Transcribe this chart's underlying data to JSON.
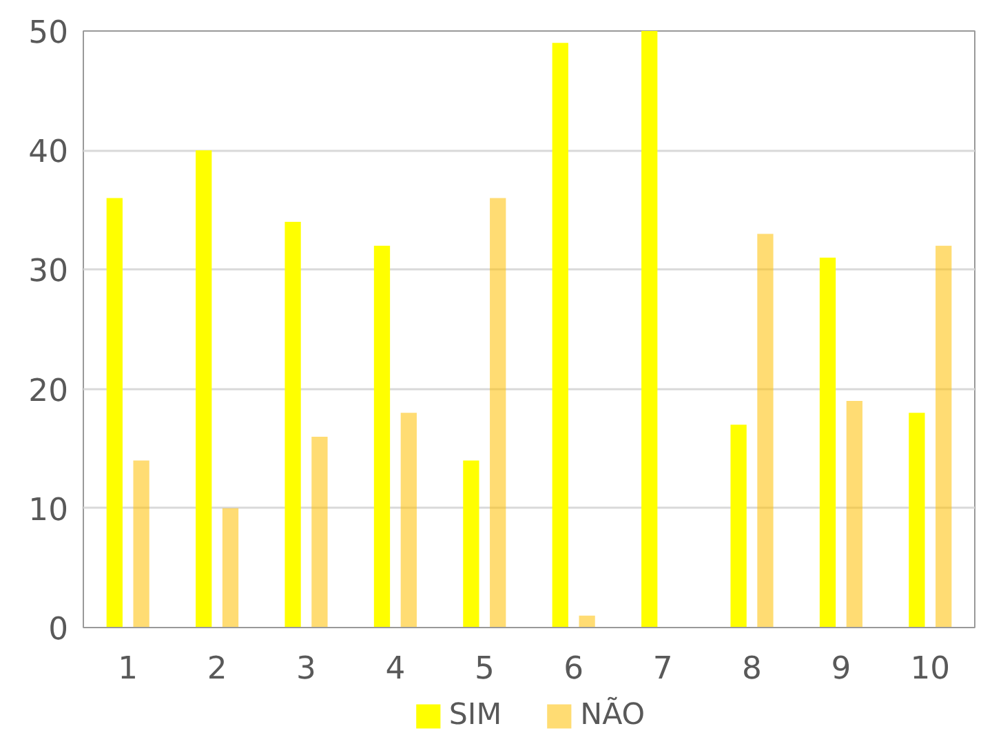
{
  "chart_data": {
    "type": "bar",
    "categories": [
      "1",
      "2",
      "3",
      "4",
      "5",
      "6",
      "7",
      "8",
      "9",
      "10"
    ],
    "series": [
      {
        "name": "SIM",
        "color": "#ffff00",
        "values": [
          36,
          40,
          34,
          32,
          14,
          49,
          50,
          17,
          31,
          18
        ]
      },
      {
        "name": "NÃO",
        "color": "#ffc000",
        "values": [
          14,
          10,
          16,
          18,
          36,
          1,
          0,
          33,
          19,
          32
        ]
      }
    ],
    "ylim": [
      0,
      50
    ],
    "yticks": [
      0,
      10,
      20,
      30,
      40,
      50
    ],
    "grid": "y",
    "legend": "bottom"
  }
}
